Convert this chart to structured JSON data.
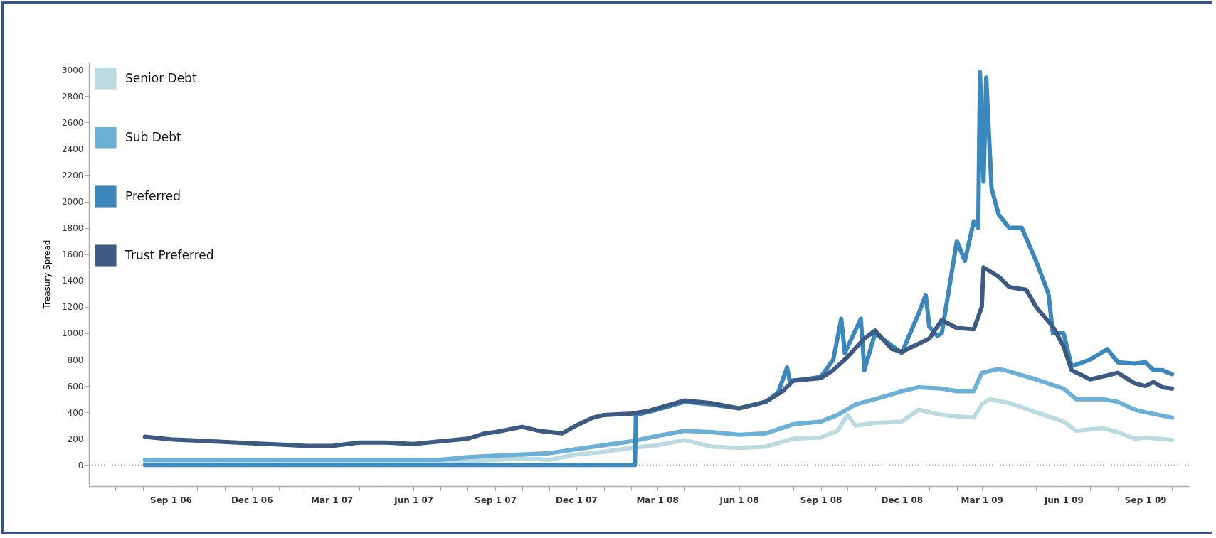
{
  "chart_data": {
    "type": "line",
    "ylabel": "Treasury Spread",
    "legend": "top left",
    "grid": false,
    "line_style": "solid",
    "marker": "none",
    "xlim": [
      "2006-06-01",
      "2009-10-20"
    ],
    "ylim": [
      -160,
      3060
    ],
    "yticks": [
      0,
      200,
      400,
      600,
      800,
      1000,
      1200,
      1400,
      1600,
      1800,
      2000,
      2200,
      2400,
      2600,
      2800,
      3000
    ],
    "xticks": [
      {
        "value": "2006-07-01",
        "label": null
      },
      {
        "value": "2006-08-01",
        "label": null
      },
      {
        "value": "2006-09-01",
        "label": "Sep 1 06"
      },
      {
        "value": "2006-10-01",
        "label": null
      },
      {
        "value": "2006-11-01",
        "label": null
      },
      {
        "value": "2006-12-01",
        "label": "Dec 1 06"
      },
      {
        "value": "2007-01-01",
        "label": null
      },
      {
        "value": "2007-02-01",
        "label": null
      },
      {
        "value": "2007-03-01",
        "label": "Mar 1 07"
      },
      {
        "value": "2007-04-01",
        "label": null
      },
      {
        "value": "2007-05-01",
        "label": null
      },
      {
        "value": "2007-06-01",
        "label": "Jun 1 07"
      },
      {
        "value": "2007-07-01",
        "label": null
      },
      {
        "value": "2007-08-01",
        "label": null
      },
      {
        "value": "2007-09-01",
        "label": "Sep 1 07"
      },
      {
        "value": "2007-10-01",
        "label": null
      },
      {
        "value": "2007-11-01",
        "label": null
      },
      {
        "value": "2007-12-01",
        "label": "Dec 1 07"
      },
      {
        "value": "2008-01-01",
        "label": null
      },
      {
        "value": "2008-02-01",
        "label": null
      },
      {
        "value": "2008-03-01",
        "label": "Mar 1 08"
      },
      {
        "value": "2008-04-01",
        "label": null
      },
      {
        "value": "2008-05-01",
        "label": null
      },
      {
        "value": "2008-06-01",
        "label": "Jun 1 08"
      },
      {
        "value": "2008-07-01",
        "label": null
      },
      {
        "value": "2008-08-01",
        "label": null
      },
      {
        "value": "2008-09-01",
        "label": "Sep 1 08"
      },
      {
        "value": "2008-10-01",
        "label": null
      },
      {
        "value": "2008-11-01",
        "label": null
      },
      {
        "value": "2008-12-01",
        "label": "Dec 1 08"
      },
      {
        "value": "2009-01-01",
        "label": null
      },
      {
        "value": "2009-02-01",
        "label": null
      },
      {
        "value": "2009-03-01",
        "label": "Mar 1 09"
      },
      {
        "value": "2009-04-01",
        "label": null
      },
      {
        "value": "2009-05-01",
        "label": null
      },
      {
        "value": "2009-06-01",
        "label": "Jun 1 09"
      },
      {
        "value": "2009-07-01",
        "label": null
      },
      {
        "value": "2009-08-01",
        "label": null
      },
      {
        "value": "2009-09-01",
        "label": "Sep 1 09"
      },
      {
        "value": "2009-10-01",
        "label": null
      }
    ],
    "ref_lines": [
      {
        "axis": "y",
        "value": 0,
        "color": "#999999",
        "line_style": "dotted"
      }
    ],
    "series": [
      {
        "name": "Senior Debt",
        "color": "#bcdbe0",
        "x": [
          "2006-08-03",
          "2007-07-01",
          "2007-08-01",
          "2007-09-01",
          "2007-10-01",
          "2007-11-01",
          "2007-12-01",
          "2008-01-01",
          "2008-02-01",
          "2008-03-01",
          "2008-04-01",
          "2008-05-01",
          "2008-06-01",
          "2008-07-01",
          "2008-08-01",
          "2008-09-01",
          "2008-09-20",
          "2008-10-01",
          "2008-10-10",
          "2008-11-01",
          "2008-12-01",
          "2008-12-20",
          "2009-01-15",
          "2009-02-01",
          "2009-02-20",
          "2009-03-01",
          "2009-03-10",
          "2009-04-01",
          "2009-05-01",
          "2009-06-01",
          "2009-06-15",
          "2009-07-15",
          "2009-08-01",
          "2009-08-20",
          "2009-09-01",
          "2009-10-01"
        ],
        "values": [
          15,
          15,
          30,
          40,
          50,
          40,
          80,
          100,
          130,
          150,
          190,
          140,
          130,
          140,
          200,
          210,
          260,
          380,
          300,
          320,
          330,
          420,
          380,
          370,
          360,
          460,
          500,
          470,
          400,
          330,
          260,
          280,
          250,
          200,
          210,
          190
        ]
      },
      {
        "name": "Sub Debt",
        "color": "#6cb0d8",
        "x": [
          "2006-08-03",
          "2007-07-01",
          "2007-08-01",
          "2007-09-01",
          "2007-10-01",
          "2007-11-01",
          "2007-12-01",
          "2008-01-01",
          "2008-02-01",
          "2008-03-01",
          "2008-04-01",
          "2008-05-01",
          "2008-06-01",
          "2008-07-01",
          "2008-08-01",
          "2008-09-01",
          "2008-09-20",
          "2008-10-10",
          "2008-11-01",
          "2008-12-01",
          "2008-12-20",
          "2009-01-15",
          "2009-02-01",
          "2009-02-20",
          "2009-03-01",
          "2009-03-20",
          "2009-04-01",
          "2009-05-01",
          "2009-06-01",
          "2009-06-15",
          "2009-07-15",
          "2009-08-01",
          "2009-08-20",
          "2009-09-01",
          "2009-10-01"
        ],
        "values": [
          40,
          40,
          60,
          70,
          80,
          90,
          120,
          150,
          180,
          220,
          260,
          250,
          230,
          240,
          310,
          330,
          380,
          460,
          500,
          560,
          590,
          580,
          560,
          560,
          700,
          730,
          710,
          650,
          580,
          500,
          500,
          480,
          420,
          400,
          360
        ]
      },
      {
        "name": "Preferred",
        "color": "#3a88bd",
        "x": [
          "2006-08-03",
          "2008-02-05",
          "2008-02-06",
          "2008-03-01",
          "2008-04-01",
          "2008-05-01",
          "2008-06-01",
          "2008-07-01",
          "2008-07-15",
          "2008-07-25",
          "2008-07-28",
          "2008-08-15",
          "2008-09-01",
          "2008-09-15",
          "2008-09-24",
          "2008-09-28",
          "2008-10-16",
          "2008-10-20",
          "2008-11-01",
          "2008-12-01",
          "2008-12-20",
          "2008-12-28",
          "2009-01-01",
          "2009-01-10",
          "2009-01-15",
          "2009-02-01",
          "2009-02-10",
          "2009-02-20",
          "2009-02-25",
          "2009-02-27",
          "2009-03-03",
          "2009-03-06",
          "2009-03-12",
          "2009-03-20",
          "2009-04-01",
          "2009-04-15",
          "2009-05-01",
          "2009-05-15",
          "2009-05-20",
          "2009-06-01",
          "2009-06-10",
          "2009-07-01",
          "2009-07-20",
          "2009-08-01",
          "2009-08-20",
          "2009-09-01",
          "2009-09-10",
          "2009-09-20",
          "2009-10-01"
        ],
        "values": [
          0,
          0,
          380,
          420,
          480,
          460,
          430,
          480,
          550,
          740,
          640,
          650,
          670,
          800,
          1110,
          850,
          1110,
          720,
          1000,
          850,
          1150,
          1290,
          1050,
          980,
          1000,
          1700,
          1550,
          1850,
          1800,
          2980,
          2150,
          2940,
          2100,
          1900,
          1800,
          1800,
          1550,
          1300,
          1000,
          1000,
          750,
          800,
          880,
          780,
          770,
          780,
          720,
          720,
          690
        ]
      },
      {
        "name": "Trust Preferred",
        "color": "#3d5b82",
        "x": [
          "2006-08-03",
          "2006-09-01",
          "2006-10-01",
          "2006-12-01",
          "2007-01-01",
          "2007-02-01",
          "2007-03-01",
          "2007-04-01",
          "2007-05-01",
          "2007-06-01",
          "2007-07-01",
          "2007-08-01",
          "2007-08-20",
          "2007-09-01",
          "2007-10-01",
          "2007-10-20",
          "2007-11-15",
          "2007-12-01",
          "2007-12-20",
          "2008-01-01",
          "2008-02-01",
          "2008-02-20",
          "2008-03-01",
          "2008-04-01",
          "2008-05-01",
          "2008-06-01",
          "2008-07-01",
          "2008-07-20",
          "2008-08-01",
          "2008-09-01",
          "2008-09-15",
          "2008-10-01",
          "2008-10-20",
          "2008-11-01",
          "2008-11-20",
          "2008-12-01",
          "2008-12-20",
          "2009-01-01",
          "2009-01-15",
          "2009-02-01",
          "2009-02-20",
          "2009-03-01",
          "2009-03-03",
          "2009-03-20",
          "2009-04-01",
          "2009-04-20",
          "2009-05-01",
          "2009-05-20",
          "2009-06-01",
          "2009-06-10",
          "2009-07-01",
          "2009-07-20",
          "2009-08-01",
          "2009-08-20",
          "2009-09-01",
          "2009-09-10",
          "2009-09-20",
          "2009-10-01"
        ],
        "values": [
          215,
          195,
          185,
          165,
          155,
          145,
          145,
          170,
          170,
          160,
          180,
          200,
          240,
          250,
          290,
          260,
          240,
          300,
          360,
          380,
          390,
          410,
          430,
          490,
          470,
          430,
          480,
          560,
          640,
          660,
          720,
          820,
          960,
          1020,
          880,
          860,
          920,
          960,
          1100,
          1040,
          1030,
          1200,
          1500,
          1430,
          1350,
          1330,
          1200,
          1050,
          900,
          720,
          650,
          680,
          700,
          620,
          600,
          630,
          590,
          580
        ]
      }
    ]
  }
}
